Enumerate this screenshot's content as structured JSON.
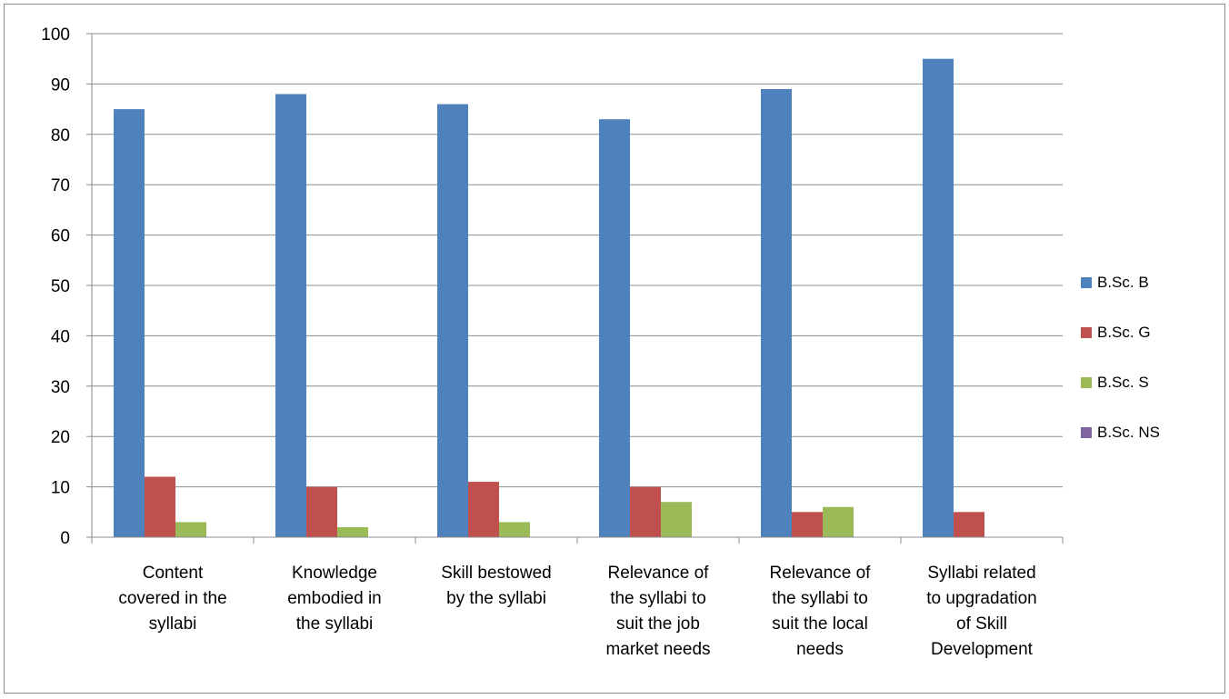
{
  "chart_data": {
    "type": "bar",
    "categories": [
      [
        "Content",
        "covered in the",
        "syllabi"
      ],
      [
        "Knowledge",
        "embodied in",
        "the syllabi"
      ],
      [
        "Skill bestowed",
        "by the syllabi"
      ],
      [
        "Relevance of",
        "the syllabi to",
        "suit the job",
        "market needs"
      ],
      [
        "Relevance of",
        "the syllabi to",
        "suit the local",
        "needs"
      ],
      [
        "Syllabi related",
        "to upgradation",
        "of Skill",
        "Development"
      ]
    ],
    "series": [
      {
        "name": "B.Sc. B",
        "color": "#4f81bd",
        "values": [
          85,
          88,
          86,
          83,
          89,
          95
        ]
      },
      {
        "name": "B.Sc. G",
        "color": "#c0504d",
        "values": [
          12,
          10,
          11,
          10,
          5,
          5
        ]
      },
      {
        "name": "B.Sc. S",
        "color": "#9bbb59",
        "values": [
          3,
          2,
          3,
          7,
          6,
          0
        ]
      },
      {
        "name": "B.Sc. NS",
        "color": "#8064a2",
        "values": [
          0,
          0,
          0,
          0,
          0,
          0
        ]
      }
    ],
    "yticks": [
      "0",
      "10",
      "20",
      "30",
      "40",
      "50",
      "60",
      "70",
      "80",
      "90",
      "100"
    ],
    "ylim": [
      0,
      100
    ],
    "grid": true,
    "legend_position": "right",
    "title": "",
    "xlabel": "",
    "ylabel": ""
  }
}
